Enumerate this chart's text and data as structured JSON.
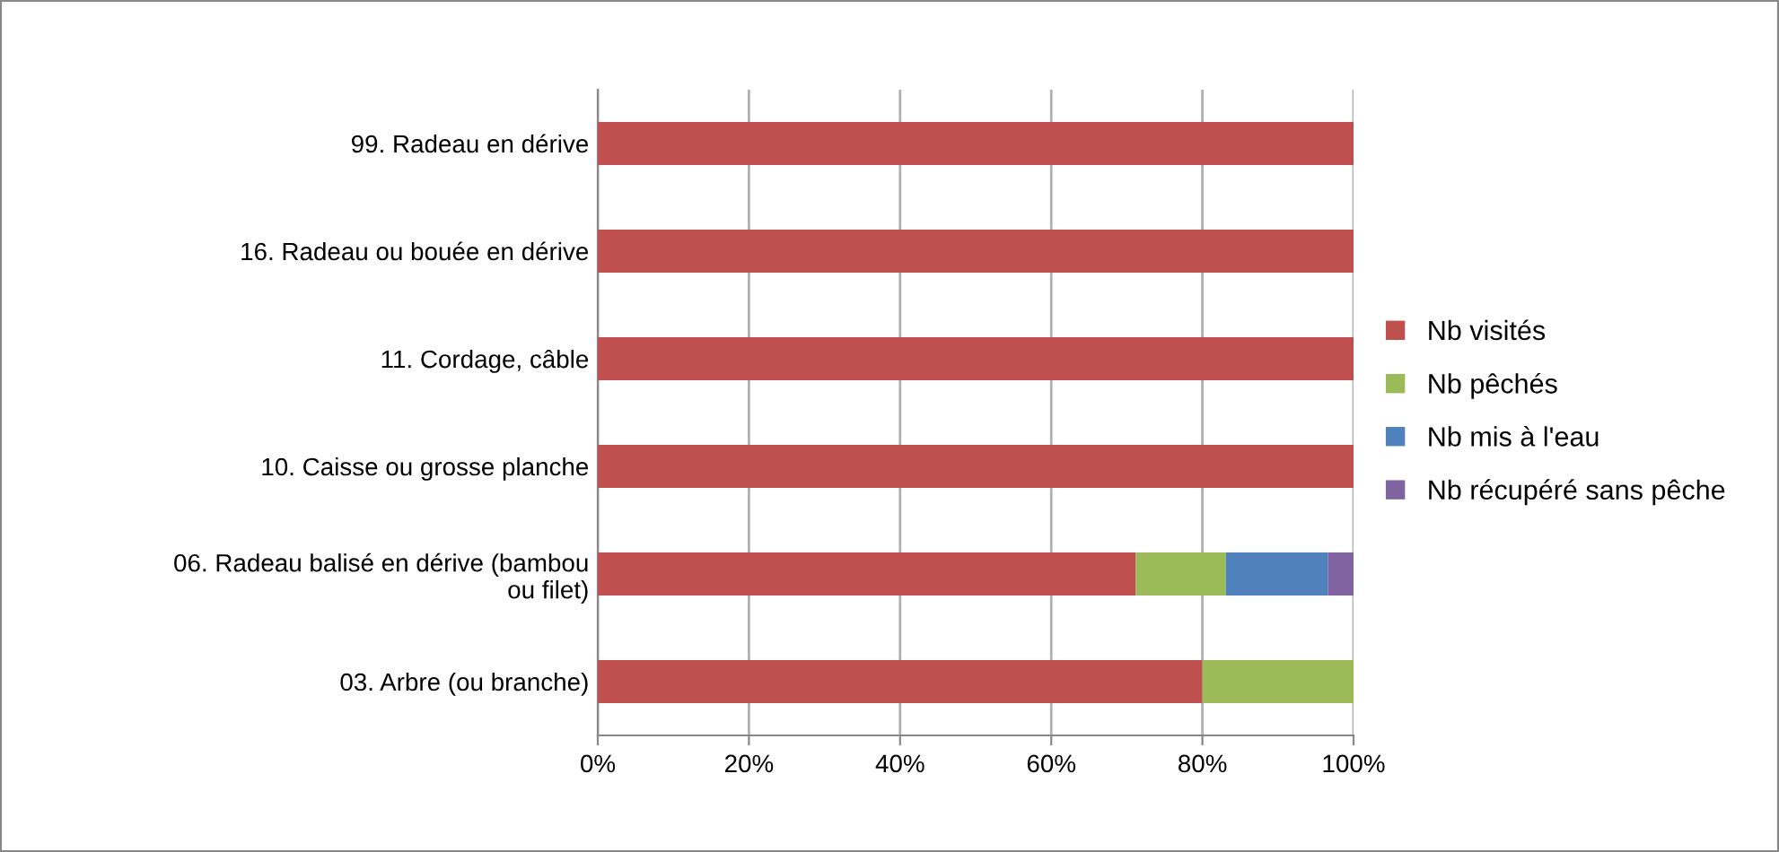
{
  "chart_data": {
    "type": "bar",
    "orientation": "horizontal",
    "stacked": true,
    "categories": [
      "99. Radeau en dérive",
      "16. Radeau ou bouée en dérive",
      "11. Cordage, câble",
      "10. Caisse ou grosse planche",
      "06. Radeau balisé en dérive (bambou ou filet)",
      "03. Arbre (ou branche)"
    ],
    "series": [
      {
        "name": "Nb visités",
        "color": "#c0504d",
        "values": [
          100,
          100,
          100,
          100,
          71.2,
          80
        ]
      },
      {
        "name": "Nb pêchés",
        "color": "#9bbb59",
        "values": [
          0,
          0,
          0,
          0,
          11.9,
          20
        ]
      },
      {
        "name": "Nb mis à l'eau",
        "color": "#4f81bd",
        "values": [
          0,
          0,
          0,
          0,
          13.5,
          0
        ]
      },
      {
        "name": "Nb récupéré sans pêche",
        "color": "#8064a2",
        "values": [
          0,
          0,
          0,
          0,
          3.4,
          0
        ]
      }
    ],
    "xlim": [
      0,
      100
    ],
    "xticks": [
      {
        "value": 0,
        "label": "0%"
      },
      {
        "value": 20,
        "label": "20%"
      },
      {
        "value": 40,
        "label": "40%"
      },
      {
        "value": 60,
        "label": "60%"
      },
      {
        "value": 80,
        "label": "80%"
      },
      {
        "value": 100,
        "label": "100%"
      }
    ],
    "grid": "x",
    "legend": "right"
  }
}
